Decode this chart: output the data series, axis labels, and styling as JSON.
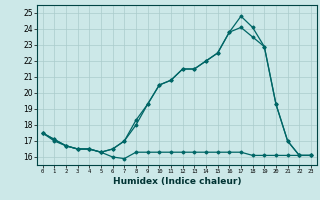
{
  "xlabel": "Humidex (Indice chaleur)",
  "bg_color": "#cce8e8",
  "grid_color": "#aacccc",
  "line_color": "#006666",
  "xlim": [
    -0.5,
    23.5
  ],
  "ylim": [
    15.5,
    25.5
  ],
  "yticks": [
    16,
    17,
    18,
    19,
    20,
    21,
    22,
    23,
    24,
    25
  ],
  "xticks": [
    0,
    1,
    2,
    3,
    4,
    5,
    6,
    7,
    8,
    9,
    10,
    11,
    12,
    13,
    14,
    15,
    16,
    17,
    18,
    19,
    20,
    21,
    22,
    23
  ],
  "line1_x": [
    0,
    1,
    2,
    3,
    4,
    5,
    6,
    7,
    8,
    9,
    10,
    11,
    12,
    13,
    14,
    15,
    16,
    17,
    18,
    19,
    20,
    21,
    22,
    23
  ],
  "line1_y": [
    17.5,
    17.0,
    16.7,
    16.5,
    16.5,
    16.3,
    16.0,
    15.9,
    16.3,
    16.3,
    16.3,
    16.3,
    16.3,
    16.3,
    16.3,
    16.3,
    16.3,
    16.3,
    16.1,
    16.1,
    16.1,
    16.1,
    16.1,
    16.1
  ],
  "line2_x": [
    0,
    1,
    2,
    3,
    4,
    5,
    6,
    7,
    8,
    9,
    10,
    11,
    12,
    13,
    14,
    15,
    16,
    17,
    18,
    19,
    20,
    21,
    22,
    23
  ],
  "line2_y": [
    17.5,
    17.1,
    16.7,
    16.5,
    16.5,
    16.3,
    16.5,
    17.0,
    18.0,
    19.3,
    20.5,
    20.8,
    21.5,
    21.5,
    22.0,
    22.5,
    23.8,
    24.1,
    23.5,
    22.9,
    19.3,
    17.0,
    16.1,
    16.1
  ],
  "line3_x": [
    0,
    1,
    2,
    3,
    4,
    5,
    6,
    7,
    8,
    9,
    10,
    11,
    12,
    13,
    14,
    15,
    16,
    17,
    18,
    19,
    20,
    21,
    22,
    23
  ],
  "line3_y": [
    17.5,
    17.1,
    16.7,
    16.5,
    16.5,
    16.3,
    16.5,
    17.0,
    18.3,
    19.3,
    20.5,
    20.8,
    21.5,
    21.5,
    22.0,
    22.5,
    23.8,
    24.8,
    24.1,
    22.9,
    19.3,
    17.0,
    16.1,
    16.1
  ]
}
